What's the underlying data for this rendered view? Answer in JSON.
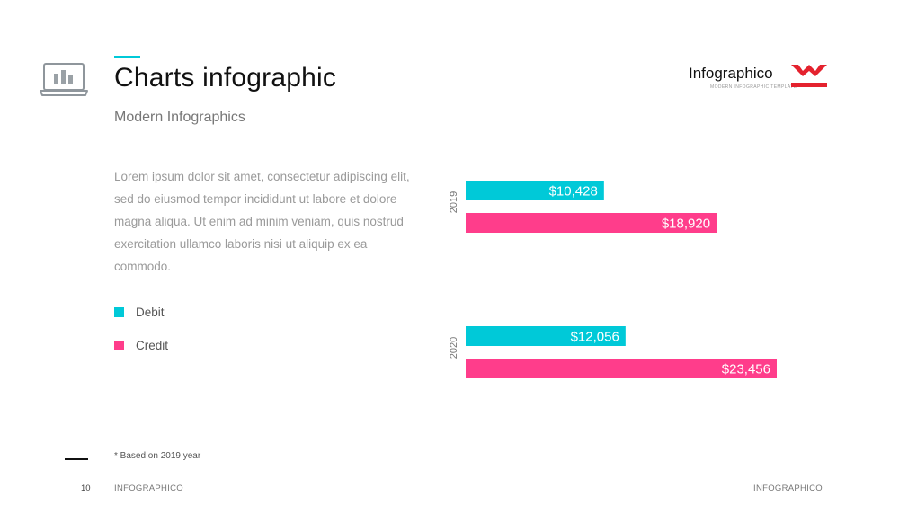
{
  "header": {
    "title": "Charts infographic",
    "subtitle": "Modern Infographics",
    "icon": "laptop-bar-chart-icon"
  },
  "logo": {
    "text": "Infographico",
    "tagline": "MODERN INFOGRAPHIC TEMPLATE",
    "mark_color": "#e4222e"
  },
  "body": {
    "paragraph": "Lorem ipsum dolor sit amet, consectetur adipiscing elit, sed do eiusmod tempor incididunt ut labore et dolore magna aliqua. Ut enim ad minim veniam, quis nostrud exercitation ullamco laboris nisi ut aliquip ex ea commodo."
  },
  "legend": [
    {
      "label": "Debit",
      "color": "#00c9d8"
    },
    {
      "label": "Credit",
      "color": "#ff3d8b"
    }
  ],
  "chart_data": {
    "type": "bar",
    "orientation": "horizontal",
    "categories": [
      "2019",
      "2020"
    ],
    "series": [
      {
        "name": "Debit",
        "color": "#00c9d8",
        "values": [
          10428,
          12056
        ],
        "labels": [
          "$10,428",
          "$12,056"
        ]
      },
      {
        "name": "Credit",
        "color": "#ff3d8b",
        "values": [
          18920,
          23456
        ],
        "labels": [
          "$18,920",
          "$23,456"
        ]
      }
    ],
    "title": "",
    "xlabel": "",
    "ylabel": "",
    "xlim": [
      0,
      23456
    ],
    "grid": false,
    "legend_position": "left"
  },
  "footer": {
    "footnote": "* Based  on 2019 year",
    "page_number": "10",
    "left_label": "INFOGRAPHICO",
    "right_label": "INFOGRAPHICO"
  }
}
